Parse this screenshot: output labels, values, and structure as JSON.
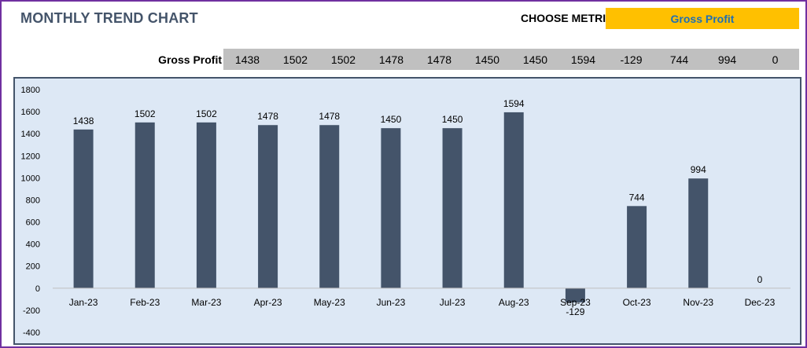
{
  "header": {
    "title": "MONTHLY TREND CHART",
    "choose_metric_label": "CHOOSE METRIC",
    "selected_metric": "Gross Profit"
  },
  "summary_row": {
    "label": "Gross Profit",
    "values": [
      "1438",
      "1502",
      "1502",
      "1478",
      "1478",
      "1450",
      "1450",
      "1594",
      "-129",
      "744",
      "994",
      "0"
    ]
  },
  "colors": {
    "bar": "#44546a",
    "chart_background": "#dde8f5",
    "selector_background": "#ffc000",
    "selector_text": "#1f6fb4",
    "frame_border": "#7030a0"
  },
  "chart_data": {
    "type": "bar",
    "categories": [
      "Jan-23",
      "Feb-23",
      "Mar-23",
      "Apr-23",
      "May-23",
      "Jun-23",
      "Jul-23",
      "Aug-23",
      "Sep-23",
      "Oct-23",
      "Nov-23",
      "Dec-23"
    ],
    "values": [
      1438,
      1502,
      1502,
      1478,
      1478,
      1450,
      1450,
      1594,
      -129,
      744,
      994,
      0
    ],
    "yticks": [
      1800,
      1600,
      1400,
      1200,
      1000,
      800,
      600,
      400,
      200,
      0,
      -200,
      -400
    ],
    "ylim": [
      -400,
      1800
    ],
    "title": "",
    "xlabel": "",
    "ylabel": "",
    "grid": false,
    "legend": "none"
  }
}
